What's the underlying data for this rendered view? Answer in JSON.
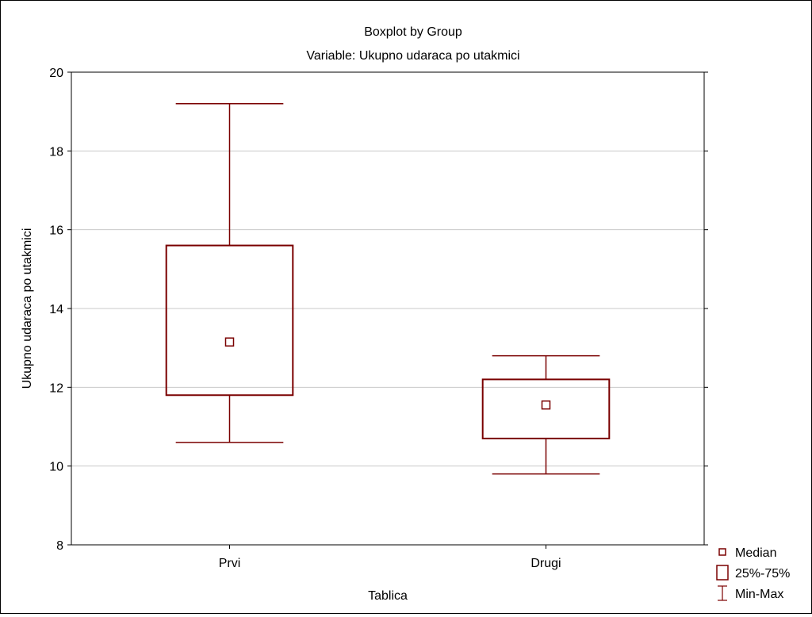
{
  "chart_data": {
    "type": "boxplot",
    "title": "Boxplot by Group",
    "subtitle": "Variable: Ukupno udaraca po utakmici",
    "xlabel": "Tablica",
    "ylabel": "Ukupno udaraca po utakmici",
    "ylim": [
      8,
      20
    ],
    "yticks": [
      "8",
      "10",
      "12",
      "14",
      "16",
      "18",
      "20"
    ],
    "categories": [
      "Prvi",
      "Drugi"
    ],
    "groups": [
      {
        "category": "Prvi",
        "min": 10.6,
        "q1": 11.8,
        "median": 13.15,
        "q3": 15.6,
        "max": 19.2
      },
      {
        "category": "Drugi",
        "min": 9.8,
        "q1": 10.7,
        "median": 11.55,
        "q3": 12.2,
        "max": 12.8
      }
    ],
    "grid": true,
    "legend_position": "bottom-right",
    "legend": [
      "Median",
      "25%-75%",
      "Min-Max"
    ],
    "colors": {
      "box": "#7a0000",
      "grid": "#c8c8c8",
      "axis": "#000000"
    }
  }
}
